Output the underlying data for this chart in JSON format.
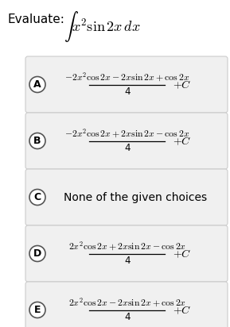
{
  "title": "Evaluate:",
  "integral": "$\\int x^2\\sin2x\\, dx$",
  "background_color": "#ffffff",
  "box_color": "#f0f0f0",
  "choices": [
    {
      "label": "A",
      "numerator": "$-2x^2\\cos2x - 2x\\sin2x + \\cos2x$",
      "denominator": "4",
      "plus_c": true,
      "is_text": false
    },
    {
      "label": "B",
      "numerator": "$-2x^2\\cos2x + 2x\\sin2x - \\cos2x$",
      "denominator": "4",
      "plus_c": true,
      "is_text": false
    },
    {
      "label": "C",
      "text": "None of the given choices",
      "is_text": true
    },
    {
      "label": "D",
      "numerator": "$2x^2\\cos2x + 2x\\sin2x - \\cos2x$",
      "denominator": "4",
      "plus_c": true,
      "is_text": false
    },
    {
      "label": "E",
      "numerator": "$2x^2\\cos2x - 2x\\sin2x + \\cos2x$",
      "denominator": "4",
      "plus_c": true,
      "is_text": false
    }
  ],
  "circle_color": "#ffffff",
  "circle_edge_color": "#555555",
  "label_fontsize": 9,
  "math_fontsize": 9,
  "title_fontsize": 11
}
